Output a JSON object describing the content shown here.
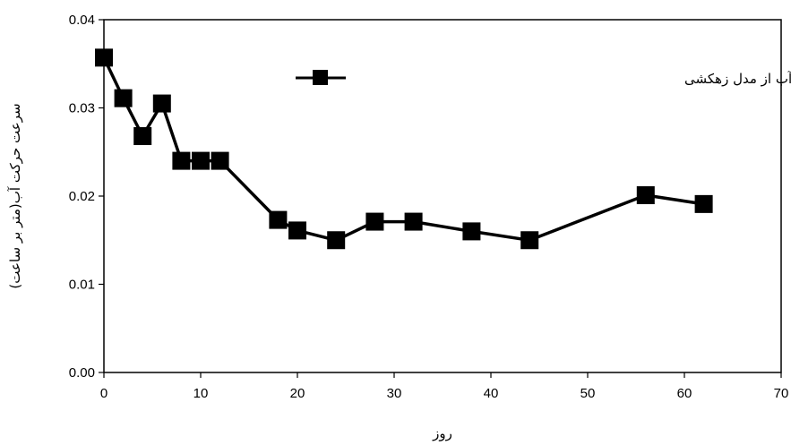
{
  "chart_data": {
    "type": "line",
    "title": "",
    "xlabel": "روز",
    "ylabel": "سرعت حرکت آب(متر بر ساعت)",
    "xlim": [
      0,
      70
    ],
    "ylim": [
      0.0,
      0.04
    ],
    "xticks": [
      0,
      10,
      20,
      30,
      40,
      50,
      60,
      70
    ],
    "yticks": [
      0.0,
      0.01,
      0.02,
      0.03,
      0.04
    ],
    "ytick_labels": [
      "0.00",
      "0.01",
      "0.02",
      "0.03",
      "0.04"
    ],
    "xtick_labels": [
      "0",
      "10",
      "20",
      "30",
      "40",
      "50",
      "60",
      "70"
    ],
    "grid": false,
    "legend_position": "top-right",
    "series": [
      {
        "name": "تغییرات سرعت خروج آب از مدل زهکشی",
        "color": "#000000",
        "marker": "square",
        "points": [
          {
            "x": 0,
            "y": 0.0357
          },
          {
            "x": 2,
            "y": 0.0311
          },
          {
            "x": 4,
            "y": 0.0268
          },
          {
            "x": 6,
            "y": 0.0305
          },
          {
            "x": 8,
            "y": 0.024
          },
          {
            "x": 10,
            "y": 0.024
          },
          {
            "x": 12,
            "y": 0.024
          },
          {
            "x": 18,
            "y": 0.0173
          },
          {
            "x": 20,
            "y": 0.0161
          },
          {
            "x": 24,
            "y": 0.015
          },
          {
            "x": 28,
            "y": 0.0171
          },
          {
            "x": 32,
            "y": 0.0171
          },
          {
            "x": 38,
            "y": 0.016
          },
          {
            "x": 44,
            "y": 0.015
          },
          {
            "x": 56,
            "y": 0.0201
          },
          {
            "x": 62,
            "y": 0.0191
          }
        ]
      }
    ]
  }
}
